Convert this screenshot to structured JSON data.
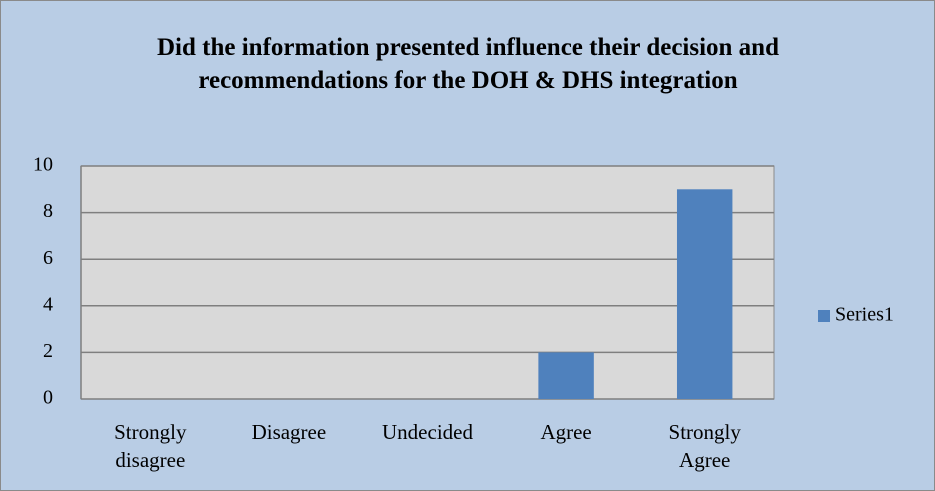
{
  "chart_data": {
    "type": "bar",
    "title": "Did the information presented influence their decision and recommendations  for the DOH & DHS integration",
    "categories": [
      "Strongly disagree",
      "Disagree",
      "Undecided",
      "Agree",
      "Strongly Agree"
    ],
    "series": [
      {
        "name": "Series1",
        "color": "#4f81bd",
        "values": [
          0,
          0,
          0,
          2,
          9
        ]
      }
    ],
    "ylim": [
      0,
      10
    ],
    "yticks": [
      0,
      2,
      4,
      6,
      8,
      10
    ],
    "grid": true,
    "legend": "right"
  }
}
